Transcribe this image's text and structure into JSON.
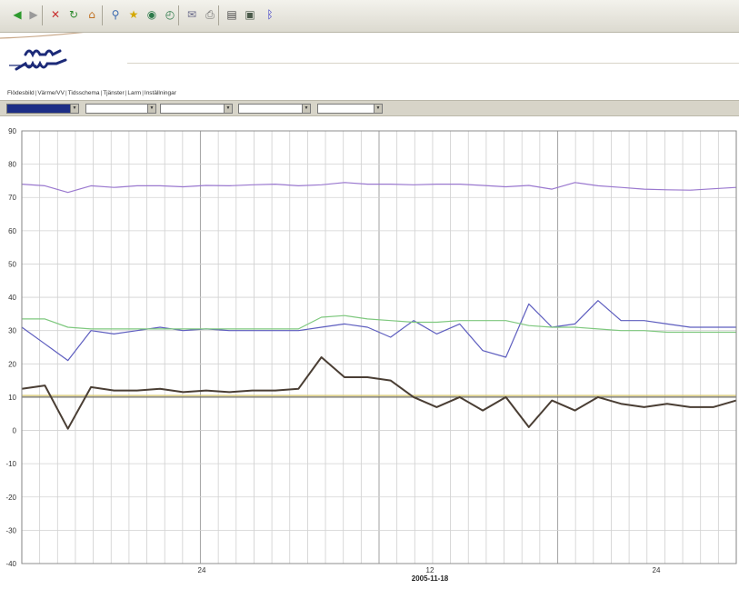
{
  "toolbar": {
    "buttons": [
      {
        "name": "back-icon",
        "glyph": "◀",
        "color": "#2e9a2e"
      },
      {
        "name": "forward-icon",
        "glyph": "▶",
        "color": "#9a9a9a"
      },
      {
        "name": "stop-icon",
        "glyph": "✕",
        "color": "#c83030"
      },
      {
        "name": "refresh-icon",
        "glyph": "↻",
        "color": "#2e8a2e"
      },
      {
        "name": "home-icon",
        "glyph": "⌂",
        "color": "#c07020"
      },
      {
        "name": "search-icon",
        "glyph": "⚲",
        "color": "#3a6ab0"
      },
      {
        "name": "favorites-icon",
        "glyph": "★",
        "color": "#d4a800"
      },
      {
        "name": "media-icon",
        "glyph": "◉",
        "color": "#2c7a4a"
      },
      {
        "name": "history-icon",
        "glyph": "◴",
        "color": "#2c7a4a"
      },
      {
        "name": "mail-icon",
        "glyph": "✉",
        "color": "#6a6a8a"
      },
      {
        "name": "print-icon",
        "glyph": "⎙",
        "color": "#6a6a6a"
      },
      {
        "name": "edit-icon",
        "glyph": "▤",
        "color": "#4a4a4a"
      },
      {
        "name": "discuss-icon",
        "glyph": "▣",
        "color": "#4a5a4a"
      },
      {
        "name": "bluetooth-icon",
        "glyph": "ᛒ",
        "color": "#3a3ac8"
      }
    ]
  },
  "menu": {
    "items": [
      "Flödesbild",
      "Värme/VV",
      "Tidsschema",
      "Tjänster",
      "Larm",
      "Inställningar"
    ]
  },
  "selects": [
    "",
    "",
    "",
    "",
    ""
  ],
  "chart_data": {
    "type": "line",
    "ylim": [
      -40,
      90
    ],
    "yticks": [
      90,
      80,
      70,
      60,
      50,
      40,
      30,
      20,
      10,
      0,
      -10,
      -20,
      -30,
      -40
    ],
    "x_tick_labels": [
      "24",
      "12",
      "24"
    ],
    "x_date_label": "2005-11-18",
    "grid": true,
    "series": [
      {
        "color": "#9a78cf",
        "values": [
          74,
          73.5,
          71.5,
          73.5,
          73,
          73.5,
          73.5,
          73.2,
          73.6,
          73.5,
          73.8,
          74,
          73.5,
          73.8,
          74.5,
          74,
          74,
          73.8,
          74,
          74,
          73.6,
          73.2,
          73.6,
          72.5,
          74.5,
          73.5,
          73,
          72.5,
          72.3,
          72.2,
          72.6,
          73
        ]
      },
      {
        "color": "#5d5dbf",
        "values": [
          31,
          26,
          21,
          30,
          29,
          30,
          31,
          30,
          30.5,
          30,
          30,
          30,
          30,
          31,
          32,
          31,
          28,
          33,
          29,
          32,
          24,
          22,
          38,
          31,
          32,
          39,
          33,
          33,
          32,
          31,
          31,
          31
        ]
      },
      {
        "color": "#7ec87e",
        "values": [
          33.5,
          33.5,
          31,
          30.5,
          30.5,
          30.5,
          30.5,
          30.5,
          30.5,
          30.5,
          30.5,
          30.5,
          30.5,
          34,
          34.5,
          33.5,
          33,
          32.5,
          32.5,
          33,
          33,
          33,
          31.5,
          31,
          31,
          30.5,
          30,
          30,
          29.5,
          29.5,
          29.5,
          29.5
        ]
      },
      {
        "color": "#d4c46a",
        "values": [
          10.5,
          10.5,
          10.5,
          10.5,
          10.5,
          10.5,
          10.5,
          10.5,
          10.5,
          10.5,
          10.5,
          10.5,
          10.5,
          10.5,
          10.5,
          10.5,
          10.5,
          10.5,
          10.5,
          10.5,
          10.5,
          10.5,
          10.5,
          10.5,
          10.5,
          10.5,
          10.5,
          10.5,
          10.5,
          10.5,
          10.5,
          10.5
        ]
      },
      {
        "color": "#6e6e68",
        "values": [
          10,
          10,
          10,
          10,
          10,
          10,
          10,
          10,
          10,
          10,
          10,
          10,
          10,
          10,
          10,
          10,
          10,
          10,
          10,
          10,
          10,
          10,
          10,
          10,
          10,
          10,
          10,
          10,
          10,
          10,
          10,
          10
        ]
      },
      {
        "color": "#4a3e34",
        "values": [
          12.5,
          13.5,
          0.5,
          13,
          12,
          12,
          12.5,
          11.5,
          12,
          11.5,
          12,
          12,
          12.5,
          22,
          16,
          16,
          15,
          10,
          7,
          10,
          6,
          10,
          1,
          9,
          6,
          10,
          8,
          7,
          8,
          7,
          7,
          9
        ]
      }
    ]
  }
}
